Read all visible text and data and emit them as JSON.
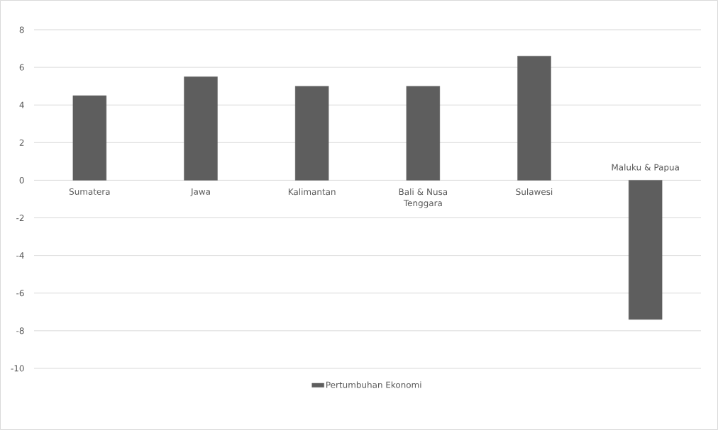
{
  "chart_data": {
    "type": "bar",
    "categories": [
      "Sumatera",
      "Jawa",
      "Kalimantan",
      "Bali & Nusa Tenggara",
      "Sulawesi",
      "Maluku & Papua"
    ],
    "series": [
      {
        "name": "Pertumbuhan Ekonomi",
        "color": "#5e5e5e",
        "values": [
          4.5,
          5.5,
          5.0,
          5.0,
          6.6,
          -7.4
        ]
      }
    ],
    "ylim": [
      -10,
      8
    ],
    "yticks": [
      -10,
      -8,
      -6,
      -4,
      -2,
      0,
      2,
      4,
      6,
      8
    ],
    "grid": "y",
    "legend": "bottom"
  }
}
